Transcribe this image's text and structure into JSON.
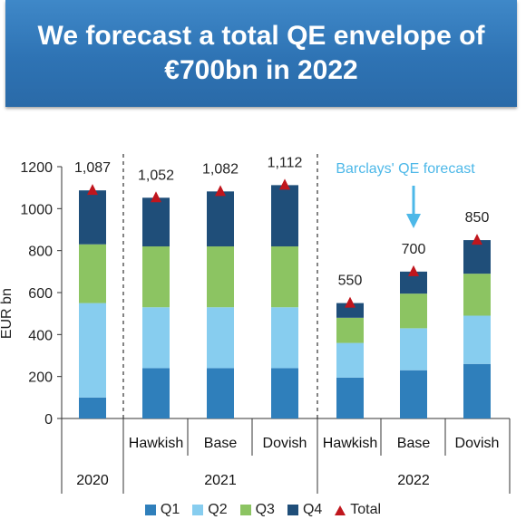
{
  "banner": {
    "line1": "We forecast a total QE envelope of",
    "line2": "€700bn in 2022"
  },
  "chart_data": {
    "type": "bar",
    "stacked": true,
    "ylabel": "EUR bn",
    "ylim": [
      0,
      1200
    ],
    "yticks": [
      0,
      200,
      400,
      600,
      800,
      1000,
      1200
    ],
    "categories": [
      "2020",
      "2021 Hawkish",
      "2021 Base",
      "2021 Dovish",
      "2022 Hawkish",
      "2022 Base",
      "2022 Dovish"
    ],
    "scenario_labels": [
      "",
      "Hawkish",
      "Base",
      "Dovish",
      "Hawkish",
      "Base",
      "Dovish"
    ],
    "year_groups": [
      {
        "label": "2020",
        "start": 0,
        "end": 0
      },
      {
        "label": "2021",
        "start": 1,
        "end": 3
      },
      {
        "label": "2022",
        "start": 4,
        "end": 6
      }
    ],
    "series": [
      {
        "name": "Q1",
        "color": "#2f7fbb",
        "values": [
          100,
          240,
          240,
          240,
          195,
          230,
          260
        ]
      },
      {
        "name": "Q2",
        "color": "#87cdef",
        "values": [
          450,
          290,
          290,
          290,
          165,
          200,
          230
        ]
      },
      {
        "name": "Q3",
        "color": "#8cc462",
        "values": [
          280,
          290,
          290,
          290,
          120,
          165,
          200
        ]
      },
      {
        "name": "Q4",
        "color": "#1f4e79",
        "values": [
          257,
          232,
          262,
          292,
          70,
          105,
          160
        ]
      }
    ],
    "total": {
      "name": "Total",
      "color": "#c0161d",
      "values": [
        1087,
        1052,
        1082,
        1112,
        550,
        700,
        850
      ],
      "labels": [
        "1,087",
        "1,052",
        "1,082",
        "1,112",
        "550",
        "700",
        "850"
      ]
    },
    "annotation": {
      "text": "Barclays' QE forecast",
      "target_index": 5
    },
    "legend_position": "bottom",
    "grid": false
  }
}
